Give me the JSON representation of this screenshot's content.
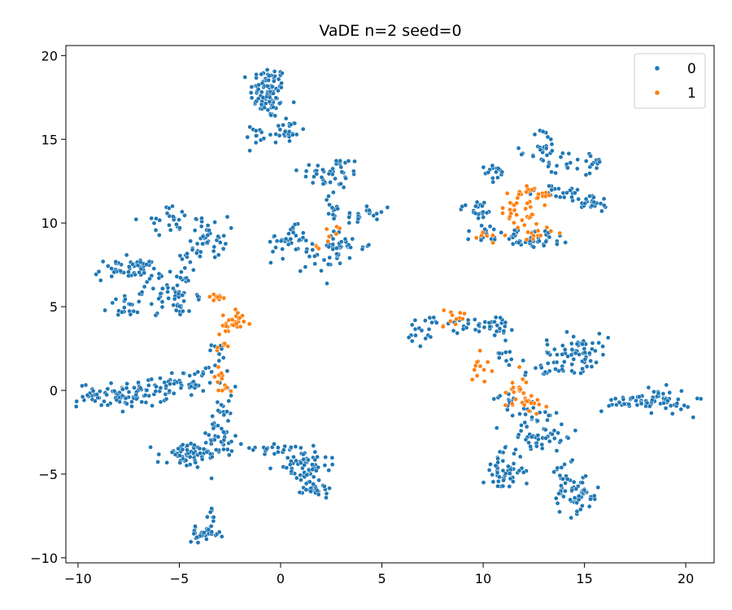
{
  "chart_data": {
    "type": "scatter",
    "title": "VaDE n=2 seed=0",
    "xlabel": "",
    "ylabel": "",
    "xlim": [
      -10.6,
      21.4
    ],
    "ylim": [
      -10.3,
      20.6
    ],
    "xticks": [
      -10,
      -5,
      0,
      5,
      10,
      15,
      20
    ],
    "yticks": [
      -10,
      -5,
      0,
      5,
      10,
      15,
      20
    ],
    "xtick_labels": [
      "−10",
      "−5",
      "0",
      "5",
      "10",
      "15",
      "20"
    ],
    "ytick_labels": [
      "−10",
      "−5",
      "0",
      "5",
      "10",
      "15",
      "20"
    ],
    "grid": false,
    "legend": {
      "position": "top-right",
      "entries": [
        "0",
        "1"
      ]
    },
    "series": [
      {
        "name": "0",
        "color": "#1f77b4",
        "clusters": [
          {
            "cx": -0.6,
            "cy": 17.8,
            "sx": 0.45,
            "sy": 0.8,
            "n": 90
          },
          {
            "cx": 0.3,
            "cy": 15.5,
            "sx": 0.45,
            "sy": 0.5,
            "n": 25
          },
          {
            "cx": -1.2,
            "cy": 15.2,
            "sx": 0.3,
            "sy": 0.5,
            "n": 12
          },
          {
            "cx": 2.5,
            "cy": 13.0,
            "sx": 0.8,
            "sy": 0.5,
            "n": 40
          },
          {
            "cx": 2.6,
            "cy": 11.0,
            "sx": 0.2,
            "sy": 1.1,
            "n": 18
          },
          {
            "cx": 4.3,
            "cy": 10.5,
            "sx": 0.6,
            "sy": 0.35,
            "n": 22
          },
          {
            "cx": 0.4,
            "cy": 9.1,
            "sx": 0.5,
            "sy": 0.35,
            "n": 28
          },
          {
            "cx": 1.5,
            "cy": 8.0,
            "sx": 0.8,
            "sy": 0.45,
            "n": 30
          },
          {
            "cx": 3.0,
            "cy": 8.7,
            "sx": 0.35,
            "sy": 0.35,
            "n": 18
          },
          {
            "cx": 4.0,
            "cy": 8.6,
            "sx": 0.3,
            "sy": 0.2,
            "n": 6
          },
          {
            "cx": -5.5,
            "cy": 10.2,
            "sx": 0.65,
            "sy": 0.4,
            "n": 25
          },
          {
            "cx": -3.5,
            "cy": 9.2,
            "sx": 0.45,
            "sy": 0.6,
            "n": 40
          },
          {
            "cx": -7.5,
            "cy": 7.2,
            "sx": 0.85,
            "sy": 0.35,
            "n": 55
          },
          {
            "cx": -5.6,
            "cy": 6.0,
            "sx": 0.6,
            "sy": 0.6,
            "n": 40
          },
          {
            "cx": -7.5,
            "cy": 5.0,
            "sx": 0.5,
            "sy": 0.3,
            "n": 20
          },
          {
            "cx": -5.0,
            "cy": 4.9,
            "sx": 0.3,
            "sy": 0.4,
            "n": 12
          },
          {
            "cx": -4.3,
            "cy": 8.0,
            "sx": 0.6,
            "sy": 0.2,
            "n": 12
          },
          {
            "cx": -4.5,
            "cy": 5.6,
            "sx": 0.5,
            "sy": 0.2,
            "n": 10
          },
          {
            "cx": -7.8,
            "cy": -0.3,
            "sx": 1.1,
            "sy": 0.35,
            "n": 85
          },
          {
            "cx": -5.4,
            "cy": 0.5,
            "sx": 0.8,
            "sy": 0.35,
            "n": 30
          },
          {
            "cx": -4.0,
            "cy": 0.3,
            "sx": 0.8,
            "sy": 0.15,
            "n": 14
          },
          {
            "cx": -3.8,
            "cy": 1.2,
            "sx": 0.4,
            "sy": 0.2,
            "n": 10
          },
          {
            "cx": -3.0,
            "cy": 2.2,
            "sx": 0.2,
            "sy": 0.3,
            "n": 8
          },
          {
            "cx": -2.7,
            "cy": -0.6,
            "sx": 0.2,
            "sy": 0.4,
            "n": 8
          },
          {
            "cx": -4.5,
            "cy": -3.9,
            "sx": 0.8,
            "sy": 0.45,
            "n": 65
          },
          {
            "cx": -3.0,
            "cy": -2.8,
            "sx": 0.55,
            "sy": 0.45,
            "n": 30
          },
          {
            "cx": -2.9,
            "cy": -1.3,
            "sx": 0.2,
            "sy": 0.5,
            "n": 10
          },
          {
            "cx": -3.8,
            "cy": -8.6,
            "sx": 0.4,
            "sy": 0.2,
            "n": 30
          },
          {
            "cx": -3.4,
            "cy": -7.6,
            "sx": 0.15,
            "sy": 0.4,
            "n": 8
          },
          {
            "cx": 1.0,
            "cy": -4.4,
            "sx": 0.7,
            "sy": 0.6,
            "n": 70
          },
          {
            "cx": 1.8,
            "cy": -5.8,
            "sx": 0.35,
            "sy": 0.3,
            "n": 25
          },
          {
            "cx": -0.6,
            "cy": -3.4,
            "sx": 0.6,
            "sy": 0.15,
            "n": 14
          },
          {
            "cx": 10.7,
            "cy": 13.0,
            "sx": 0.3,
            "sy": 0.25,
            "n": 15
          },
          {
            "cx": 9.7,
            "cy": 10.8,
            "sx": 0.45,
            "sy": 0.3,
            "n": 20
          },
          {
            "cx": 10.0,
            "cy": 9.5,
            "sx": 0.4,
            "sy": 0.3,
            "n": 12
          },
          {
            "cx": 13.0,
            "cy": 14.3,
            "sx": 0.4,
            "sy": 0.7,
            "n": 30
          },
          {
            "cx": 14.8,
            "cy": 13.6,
            "sx": 0.7,
            "sy": 0.4,
            "n": 25
          },
          {
            "cx": 15.2,
            "cy": 11.2,
            "sx": 0.6,
            "sy": 0.3,
            "n": 25
          },
          {
            "cx": 13.8,
            "cy": 11.8,
            "sx": 0.9,
            "sy": 0.2,
            "n": 20
          },
          {
            "cx": 12.6,
            "cy": 9.1,
            "sx": 0.9,
            "sy": 0.3,
            "n": 35
          },
          {
            "cx": 11.5,
            "cy": 9.0,
            "sx": 0.6,
            "sy": 0.2,
            "n": 12
          },
          {
            "cx": 7.2,
            "cy": 3.6,
            "sx": 0.5,
            "sy": 0.45,
            "n": 20
          },
          {
            "cx": 9.0,
            "cy": 3.9,
            "sx": 0.5,
            "sy": 0.25,
            "n": 14
          },
          {
            "cx": 10.6,
            "cy": 4.0,
            "sx": 0.5,
            "sy": 0.35,
            "n": 25
          },
          {
            "cx": 11.2,
            "cy": 2.2,
            "sx": 0.2,
            "sy": 0.5,
            "n": 10
          },
          {
            "cx": 14.6,
            "cy": 2.3,
            "sx": 0.8,
            "sy": 0.55,
            "n": 65
          },
          {
            "cx": 13.2,
            "cy": 1.3,
            "sx": 0.6,
            "sy": 0.3,
            "n": 20
          },
          {
            "cx": 12.6,
            "cy": -1.5,
            "sx": 0.6,
            "sy": 0.35,
            "n": 25
          },
          {
            "cx": 13.0,
            "cy": -2.8,
            "sx": 0.8,
            "sy": 0.3,
            "n": 40
          },
          {
            "cx": 11.0,
            "cy": -4.8,
            "sx": 0.5,
            "sy": 0.6,
            "n": 55
          },
          {
            "cx": 11.2,
            "cy": -0.6,
            "sx": 0.3,
            "sy": 0.15,
            "n": 10
          },
          {
            "cx": 14.6,
            "cy": -6.2,
            "sx": 0.6,
            "sy": 0.6,
            "n": 55
          },
          {
            "cx": 14.0,
            "cy": -4.8,
            "sx": 0.25,
            "sy": 0.5,
            "n": 12
          },
          {
            "cx": 18.5,
            "cy": -0.6,
            "sx": 0.9,
            "sy": 0.35,
            "n": 60
          },
          {
            "cx": 17.0,
            "cy": -0.7,
            "sx": 0.4,
            "sy": 0.15,
            "n": 12
          }
        ]
      },
      {
        "name": "1",
        "color": "#ff7f0e",
        "clusters": [
          {
            "cx": -2.4,
            "cy": 4.0,
            "sx": 0.3,
            "sy": 0.35,
            "n": 30
          },
          {
            "cx": -3.0,
            "cy": 5.5,
            "sx": 0.4,
            "sy": 0.15,
            "n": 10
          },
          {
            "cx": -2.9,
            "cy": 2.6,
            "sx": 0.15,
            "sy": 0.5,
            "n": 8
          },
          {
            "cx": -3.0,
            "cy": 0.7,
            "sx": 0.15,
            "sy": 0.5,
            "n": 10
          },
          {
            "cx": -2.6,
            "cy": 0.2,
            "sx": 0.1,
            "sy": 0.15,
            "n": 5
          },
          {
            "cx": 2.8,
            "cy": 9.7,
            "sx": 0.4,
            "sy": 0.3,
            "n": 6
          },
          {
            "cx": 1.8,
            "cy": 8.5,
            "sx": 0.15,
            "sy": 0.1,
            "n": 3
          },
          {
            "cx": 11.8,
            "cy": 10.8,
            "sx": 0.45,
            "sy": 0.7,
            "n": 35
          },
          {
            "cx": 12.8,
            "cy": 11.8,
            "sx": 0.4,
            "sy": 0.3,
            "n": 15
          },
          {
            "cx": 12.5,
            "cy": 9.4,
            "sx": 0.5,
            "sy": 0.2,
            "n": 12
          },
          {
            "cx": 10.1,
            "cy": 9.2,
            "sx": 0.3,
            "sy": 0.2,
            "n": 6
          },
          {
            "cx": 8.4,
            "cy": 4.3,
            "sx": 0.35,
            "sy": 0.3,
            "n": 12
          },
          {
            "cx": 9.9,
            "cy": 1.5,
            "sx": 0.25,
            "sy": 0.5,
            "n": 12
          },
          {
            "cx": 11.6,
            "cy": 0.2,
            "sx": 0.3,
            "sy": 0.5,
            "n": 14
          },
          {
            "cx": 12.3,
            "cy": -0.8,
            "sx": 0.4,
            "sy": 0.35,
            "n": 20
          }
        ]
      }
    ]
  }
}
